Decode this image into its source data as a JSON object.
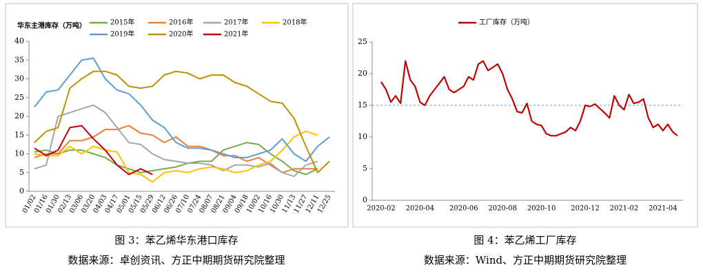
{
  "chart_data": [
    {
      "type": "line",
      "ylabel": "华东主港库存（万吨）",
      "caption": "图 3：苯乙烯华东港口库存",
      "source": "数据来源：卓创资讯、方正中期期货研究院整理",
      "categories": [
        "01/02",
        "01/16",
        "01/30",
        "02/13",
        "03/06",
        "03/20",
        "04/03",
        "04/17",
        "05/01",
        "05/15",
        "05/29",
        "06/12",
        "06/26",
        "07/10",
        "07/24",
        "08/07",
        "08/21",
        "09/04",
        "09/18",
        "10/02",
        "10/16",
        "10/30",
        "11/13",
        "11/27",
        "12/11",
        "12/25"
      ],
      "ylim": [
        0,
        40
      ],
      "yticks": [
        0,
        5,
        10,
        15,
        20,
        25,
        30,
        35,
        40
      ],
      "series": [
        {
          "name": "2015年",
          "color": "#70ad47",
          "values": [
            10.5,
            11,
            10,
            11,
            11,
            10,
            9,
            7,
            6,
            5,
            5.5,
            6,
            6.5,
            7.5,
            8,
            8,
            11,
            12,
            13,
            12.5,
            10,
            8,
            5.5,
            4.5,
            6,
            null
          ]
        },
        {
          "name": "2016年",
          "color": "#ed7d31",
          "values": [
            9,
            10,
            10,
            13.5,
            13.5,
            14.5,
            16.5,
            16.5,
            17.5,
            15.5,
            15,
            13,
            14.5,
            12,
            12,
            11,
            9.5,
            9.5,
            8,
            9,
            7,
            5,
            6,
            6,
            6,
            null
          ]
        },
        {
          "name": "2017年",
          "color": "#a5a5a5",
          "values": [
            6,
            7,
            20,
            21,
            22,
            23,
            21,
            17,
            13,
            12.5,
            10,
            8.5,
            8,
            7.5,
            7.5,
            7,
            5.5,
            7,
            7,
            6.5,
            7.5,
            5,
            4,
            7,
            8,
            null
          ]
        },
        {
          "name": "2018年",
          "color": "#ffc000",
          "values": [
            10,
            9.5,
            9.5,
            12,
            10,
            12,
            11,
            10.5,
            5,
            4.5,
            2.5,
            5,
            5.5,
            5,
            6,
            6.5,
            6,
            5,
            5.5,
            7,
            8,
            11,
            14.5,
            16,
            15,
            null
          ]
        },
        {
          "name": "2019年",
          "color": "#5b9bd5",
          "values": [
            22.5,
            26.5,
            27,
            31,
            35,
            35.5,
            30,
            27,
            26,
            23,
            19,
            17,
            13,
            11.5,
            11.5,
            11,
            10,
            9,
            9,
            10,
            11,
            14,
            10,
            8,
            12,
            14.5
          ]
        },
        {
          "name": "2020年",
          "color": "#bf9000",
          "values": [
            13,
            16,
            17,
            27.5,
            30,
            32,
            32,
            31,
            28,
            27.5,
            28,
            31,
            32,
            31.5,
            30,
            31,
            31,
            29,
            28,
            26,
            24,
            23.5,
            19.5,
            12,
            5,
            8
          ]
        },
        {
          "name": "2021年",
          "color": "#c00000",
          "values": [
            11.5,
            9.5,
            11,
            17,
            17.5,
            14,
            11,
            7,
            4.5,
            6,
            4.5,
            null,
            null,
            null,
            null,
            null,
            null,
            null,
            null,
            null,
            null,
            null,
            null,
            null,
            null,
            null
          ]
        }
      ]
    },
    {
      "type": "line",
      "caption": "图 4：苯乙烯工厂库存",
      "source": "数据来源：Wind、方正中期期货研究院整理",
      "categories": [
        "2020-02",
        null,
        null,
        null,
        null,
        null,
        null,
        null,
        "2020-04",
        null,
        null,
        null,
        null,
        null,
        null,
        null,
        null,
        "2020-06",
        null,
        null,
        null,
        null,
        null,
        null,
        null,
        "2020-08",
        null,
        null,
        null,
        null,
        null,
        null,
        null,
        "2020-10",
        null,
        null,
        null,
        null,
        null,
        null,
        null,
        null,
        "2020-12",
        null,
        null,
        null,
        null,
        null,
        null,
        null,
        "2021-02",
        null,
        null,
        null,
        null,
        null,
        null,
        null,
        "2021-04",
        null,
        null,
        null
      ],
      "ylim": [
        0,
        25
      ],
      "yticks": [
        0,
        5,
        10,
        15,
        20,
        25
      ],
      "reference_line": 15,
      "series": [
        {
          "name": "工厂库存（万吨）",
          "color": "#c00000",
          "values": [
            18.7,
            17.5,
            15.5,
            16.5,
            15.3,
            22,
            19,
            18,
            15.5,
            15,
            16.5,
            17.5,
            18.5,
            19.5,
            17.5,
            17,
            17.5,
            18,
            19.5,
            19,
            21.5,
            22,
            20.5,
            21,
            21.5,
            20,
            17.5,
            16,
            14,
            13.8,
            15.3,
            12.5,
            12,
            11.8,
            10.5,
            10.2,
            10.2,
            10.5,
            10.8,
            11.5,
            11,
            12.5,
            15,
            14.8,
            15.2,
            14.5,
            13.8,
            13,
            16.5,
            15,
            14.3,
            16.7,
            15.3,
            15.5,
            16,
            13,
            11.5,
            12,
            11,
            12,
            10.8,
            10.2
          ]
        }
      ]
    }
  ]
}
